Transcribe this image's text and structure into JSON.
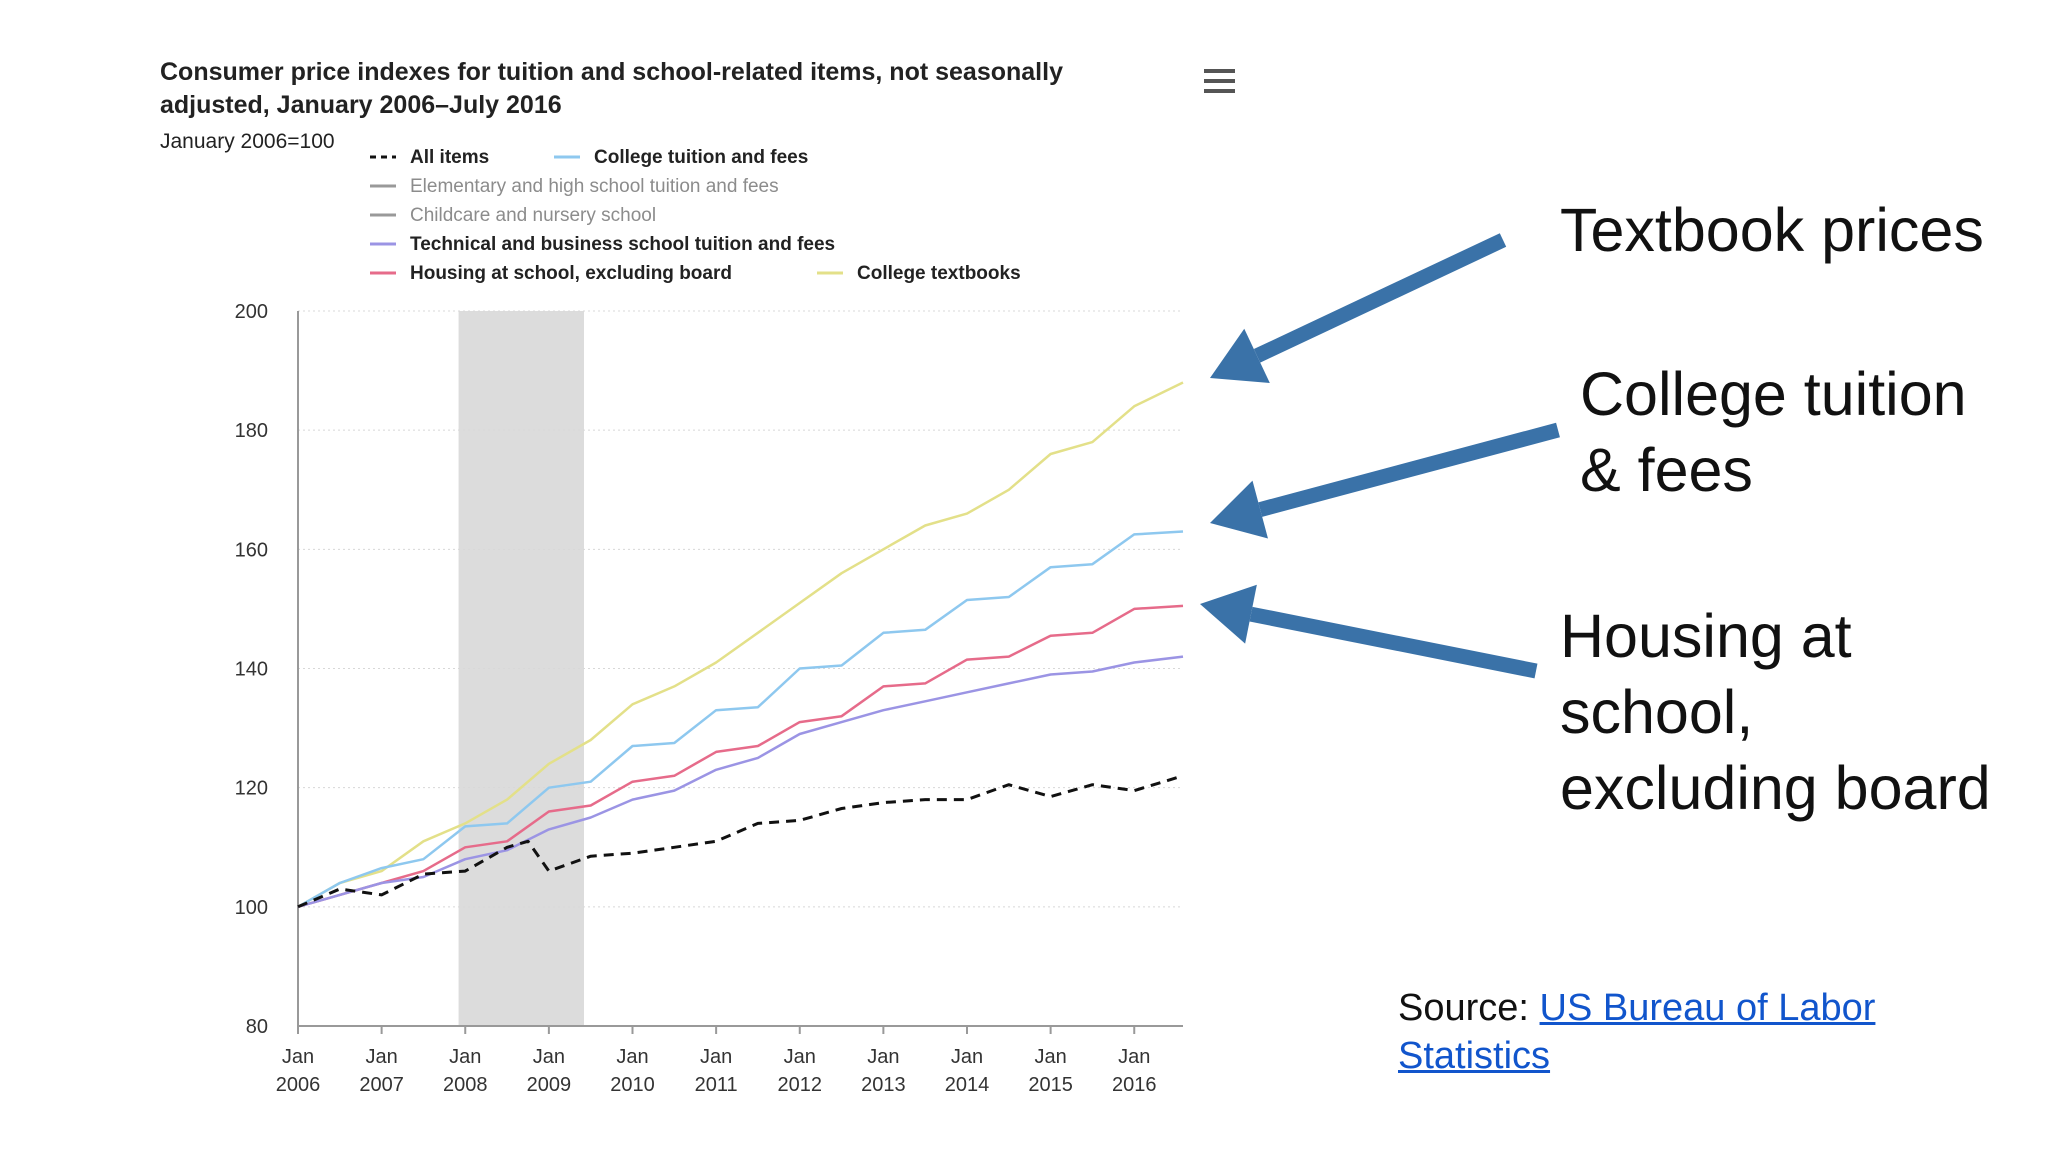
{
  "chart_data": {
    "type": "line",
    "title_line1": "Consumer price indexes for tuition and school-related items, not seasonally",
    "title_line2": "adjusted, January 2006–July 2016",
    "subtitle": "January 2006=100",
    "ylim": [
      80,
      200
    ],
    "yticks": [
      "80",
      "100",
      "120",
      "140",
      "160",
      "180",
      "200"
    ],
    "xlim": [
      2006.0,
      2016.583
    ],
    "xticks": [
      {
        "month": "Jan",
        "year": "2006"
      },
      {
        "month": "Jan",
        "year": "2007"
      },
      {
        "month": "Jan",
        "year": "2008"
      },
      {
        "month": "Jan",
        "year": "2009"
      },
      {
        "month": "Jan",
        "year": "2010"
      },
      {
        "month": "Jan",
        "year": "2011"
      },
      {
        "month": "Jan",
        "year": "2012"
      },
      {
        "month": "Jan",
        "year": "2013"
      },
      {
        "month": "Jan",
        "year": "2014"
      },
      {
        "month": "Jan",
        "year": "2015"
      },
      {
        "month": "Jan",
        "year": "2016"
      }
    ],
    "grid": true,
    "legend_position": "top",
    "shaded_period": {
      "start": 2007.92,
      "end": 2009.42,
      "color": "#dcdcdc"
    },
    "legend": [
      {
        "name": "All items",
        "color": "#111111",
        "dash": "6,5"
      },
      {
        "name": "College tuition and fees",
        "color": "#8ec8ef",
        "dash": ""
      },
      {
        "name": "Elementary and high school tuition and fees",
        "color": "#999999",
        "dash": ""
      },
      {
        "name": "Childcare and nursery school",
        "color": "#999999",
        "dash": ""
      },
      {
        "name": "Technical and business school tuition and fees",
        "color": "#9b94e4",
        "dash": ""
      },
      {
        "name": "Housing at school, excluding board",
        "color": "#e66b8a",
        "dash": ""
      },
      {
        "name": "College textbooks",
        "color": "#e3e089",
        "dash": ""
      }
    ],
    "series": [
      {
        "name": "College textbooks",
        "color": "#e3e089",
        "dash": "",
        "x": [
          2006.0,
          2006.5,
          2007.0,
          2007.5,
          2008.0,
          2008.5,
          2009.0,
          2009.5,
          2010.0,
          2010.5,
          2011.0,
          2011.5,
          2012.0,
          2012.5,
          2013.0,
          2013.5,
          2014.0,
          2014.5,
          2015.0,
          2015.5,
          2016.0,
          2016.583
        ],
        "y": [
          100,
          104,
          106,
          111,
          114,
          118,
          124,
          128,
          134,
          137,
          141,
          146,
          151,
          156,
          160,
          164,
          166,
          170,
          176,
          178,
          184,
          188
        ]
      },
      {
        "name": "College tuition and fees",
        "color": "#8ec8ef",
        "dash": "",
        "x": [
          2006.0,
          2006.5,
          2007.0,
          2007.5,
          2008.0,
          2008.5,
          2009.0,
          2009.5,
          2010.0,
          2010.5,
          2011.0,
          2011.5,
          2012.0,
          2012.5,
          2013.0,
          2013.5,
          2014.0,
          2014.5,
          2015.0,
          2015.5,
          2016.0,
          2016.583
        ],
        "y": [
          100,
          104,
          106.5,
          108,
          113.5,
          114,
          120,
          121,
          127,
          127.5,
          133,
          133.5,
          140,
          140.5,
          146,
          146.5,
          151.5,
          152,
          157,
          157.5,
          162.5,
          163
        ]
      },
      {
        "name": "Housing at school, excluding board",
        "color": "#e66b8a",
        "dash": "",
        "x": [
          2006.0,
          2006.5,
          2007.0,
          2007.5,
          2008.0,
          2008.5,
          2009.0,
          2009.5,
          2010.0,
          2010.5,
          2011.0,
          2011.5,
          2012.0,
          2012.5,
          2013.0,
          2013.5,
          2014.0,
          2014.5,
          2015.0,
          2015.5,
          2016.0,
          2016.583
        ],
        "y": [
          100,
          102,
          104,
          106,
          110,
          111,
          116,
          117,
          121,
          122,
          126,
          127,
          131,
          132,
          137,
          137.5,
          141.5,
          142,
          145.5,
          146,
          150,
          150.5
        ]
      },
      {
        "name": "Technical and business school tuition and fees",
        "color": "#9b94e4",
        "dash": "",
        "x": [
          2006.0,
          2006.5,
          2007.0,
          2007.5,
          2008.0,
          2008.5,
          2009.0,
          2009.5,
          2010.0,
          2010.5,
          2011.0,
          2011.5,
          2012.0,
          2012.5,
          2013.0,
          2013.5,
          2014.0,
          2014.5,
          2015.0,
          2015.5,
          2016.0,
          2016.583
        ],
        "y": [
          100,
          102,
          104,
          105,
          108,
          109.5,
          113,
          115,
          118,
          119.5,
          123,
          125,
          129,
          131,
          133,
          134.5,
          136,
          137.5,
          139,
          139.5,
          141,
          142
        ]
      },
      {
        "name": "All items",
        "color": "#111111",
        "dash": "10,7",
        "x": [
          2006.0,
          2006.5,
          2007.0,
          2007.5,
          2008.0,
          2008.5,
          2008.75,
          2009.0,
          2009.5,
          2010.0,
          2010.5,
          2011.0,
          2011.5,
          2012.0,
          2012.5,
          2013.0,
          2013.5,
          2014.0,
          2014.5,
          2015.0,
          2015.5,
          2016.0,
          2016.583
        ],
        "y": [
          100,
          103,
          102,
          105.5,
          106,
          110,
          111,
          106,
          108.5,
          109,
          110,
          111,
          114,
          114.5,
          116.5,
          117.5,
          118,
          118,
          120.5,
          118.5,
          120.5,
          119.5,
          122
        ]
      }
    ]
  },
  "annotations": {
    "textbook": [
      "Textbook prices"
    ],
    "tuition": [
      "College tuition",
      "& fees"
    ],
    "housing": [
      "Housing at",
      "school,",
      "excluding board"
    ],
    "arrow_color": "#3a72a8"
  },
  "source": {
    "prefix": "Source: ",
    "link_line1": "US Bureau of Labor",
    "link_line2": "Statistics",
    "link_color": "#1155cc"
  }
}
